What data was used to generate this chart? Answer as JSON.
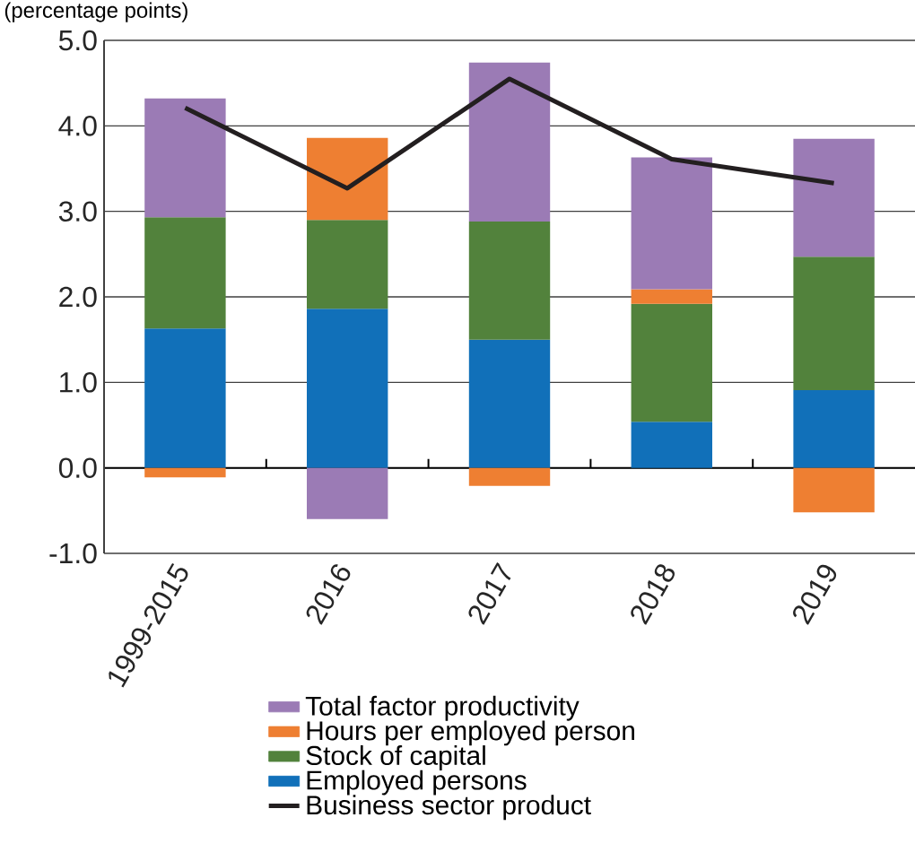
{
  "chart_data": {
    "type": "bar",
    "title": "(percentage points)",
    "stacked": true,
    "grid": "y",
    "legend": "bottom",
    "categories": [
      "1999-2015",
      "2016",
      "2017",
      "2018",
      "2019"
    ],
    "series": [
      {
        "name": "Employed persons",
        "color": "#1170b9",
        "values": [
          1.63,
          1.86,
          1.5,
          0.54,
          0.91
        ]
      },
      {
        "name": "Stock of capital",
        "color": "#52823c",
        "values": [
          1.3,
          1.04,
          1.38,
          1.38,
          1.56
        ]
      },
      {
        "name": "Hours per employed person",
        "color": "#ee7f32",
        "values": [
          -0.11,
          0.96,
          -0.21,
          0.17,
          -0.52
        ]
      },
      {
        "name": "Total factor productivity",
        "color": "#9b7bb5",
        "values": [
          1.39,
          -0.6,
          1.86,
          1.54,
          1.38
        ]
      },
      {
        "name": "Business sector product",
        "color": "#231f20",
        "type": "line",
        "values": [
          4.21,
          3.27,
          4.55,
          3.61,
          3.33
        ]
      }
    ],
    "ylim": [
      -1,
      5
    ],
    "yticks": [
      {
        "value": -1,
        "label": "-1.0"
      },
      {
        "value": 0,
        "label": "0.0"
      },
      {
        "value": 1,
        "label": "1.0"
      },
      {
        "value": 2,
        "label": "2.0"
      },
      {
        "value": 3,
        "label": "3.0"
      },
      {
        "value": 4,
        "label": "4.0"
      },
      {
        "value": 5,
        "label": "5.0"
      }
    ]
  }
}
